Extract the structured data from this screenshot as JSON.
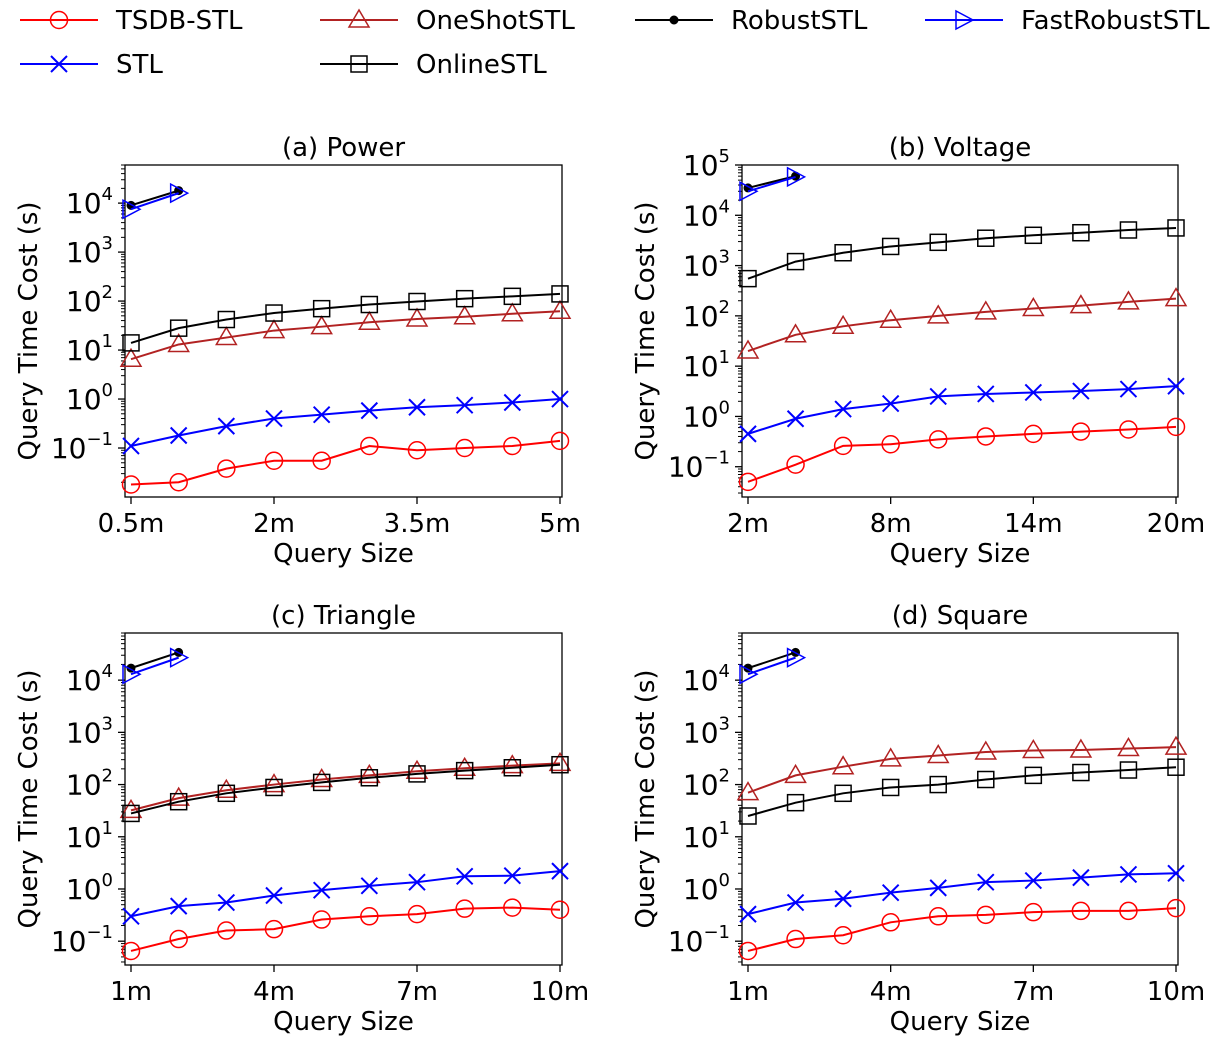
{
  "legend": [
    {
      "name": "TSDB-STL",
      "color": "#ff0000",
      "marker": "circle"
    },
    {
      "name": "OneShotSTL",
      "color": "#b22222",
      "marker": "triangle"
    },
    {
      "name": "RobustSTL",
      "color": "#000000",
      "marker": "dot"
    },
    {
      "name": "FastRobustSTL",
      "color": "#0000ff",
      "marker": "tri-right"
    },
    {
      "name": "STL",
      "color": "#0000ff",
      "marker": "x"
    },
    {
      "name": "OnlineSTL",
      "color": "#000000",
      "marker": "square"
    }
  ],
  "chart_data": [
    {
      "type": "line",
      "title": "(a) Power",
      "xlabel": "Query Size",
      "ylabel": "Query Time Cost (s)",
      "yscale": "log",
      "xlim": [
        0.5,
        5
      ],
      "ylim": [
        0.01,
        60000
      ],
      "x_ticks": [
        {
          "v": 0.5,
          "label": "0.5m"
        },
        {
          "v": 2,
          "label": "2m"
        },
        {
          "v": 3.5,
          "label": "3.5m"
        },
        {
          "v": 5,
          "label": "5m"
        }
      ],
      "y_ticks": [
        {
          "v": 0.1,
          "base": "10",
          "exp": "−1"
        },
        {
          "v": 1,
          "base": "10",
          "exp": "0"
        },
        {
          "v": 10,
          "base": "10",
          "exp": "1"
        },
        {
          "v": 100,
          "base": "10",
          "exp": "2"
        },
        {
          "v": 1000,
          "base": "10",
          "exp": "3"
        },
        {
          "v": 10000,
          "base": "10",
          "exp": "4"
        }
      ],
      "series": [
        {
          "name": "TSDB-STL",
          "x": [
            0.5,
            1,
            1.5,
            2,
            2.5,
            3,
            3.5,
            4,
            4.5,
            5
          ],
          "y": [
            0.018,
            0.02,
            0.038,
            0.055,
            0.055,
            0.11,
            0.09,
            0.1,
            0.11,
            0.14
          ]
        },
        {
          "name": "STL",
          "x": [
            0.5,
            1,
            1.5,
            2,
            2.5,
            3,
            3.5,
            4,
            4.5,
            5
          ],
          "y": [
            0.11,
            0.18,
            0.28,
            0.4,
            0.48,
            0.58,
            0.68,
            0.75,
            0.85,
            1.0
          ]
        },
        {
          "name": "OneShotSTL",
          "x": [
            0.5,
            1,
            1.5,
            2,
            2.5,
            3,
            3.5,
            4,
            4.5,
            5
          ],
          "y": [
            6.5,
            13,
            18,
            25,
            30,
            37,
            43,
            48,
            55,
            62
          ]
        },
        {
          "name": "OnlineSTL",
          "x": [
            0.5,
            1,
            1.5,
            2,
            2.5,
            3,
            3.5,
            4,
            4.5,
            5
          ],
          "y": [
            14,
            28,
            42,
            57,
            70,
            85,
            98,
            112,
            125,
            140
          ]
        },
        {
          "name": "RobustSTL",
          "x": [
            0.5,
            1
          ],
          "y": [
            9000,
            18000
          ]
        },
        {
          "name": "FastRobustSTL",
          "x": [
            0.5,
            1
          ],
          "y": [
            7500,
            16000
          ]
        }
      ]
    },
    {
      "type": "line",
      "title": "(b) Voltage",
      "xlabel": "Query Size",
      "ylabel": "Query Time Cost (s)",
      "yscale": "log",
      "xlim": [
        2,
        20
      ],
      "ylim": [
        0.025,
        100000
      ],
      "x_ticks": [
        {
          "v": 2,
          "label": "2m"
        },
        {
          "v": 8,
          "label": "8m"
        },
        {
          "v": 14,
          "label": "14m"
        },
        {
          "v": 20,
          "label": "20m"
        }
      ],
      "y_ticks": [
        {
          "v": 0.1,
          "base": "10",
          "exp": "−1"
        },
        {
          "v": 1,
          "base": "10",
          "exp": "0"
        },
        {
          "v": 10,
          "base": "10",
          "exp": "1"
        },
        {
          "v": 100,
          "base": "10",
          "exp": "2"
        },
        {
          "v": 1000,
          "base": "10",
          "exp": "3"
        },
        {
          "v": 10000,
          "base": "10",
          "exp": "4"
        },
        {
          "v": 100000,
          "base": "10",
          "exp": "5"
        }
      ],
      "series": [
        {
          "name": "TSDB-STL",
          "x": [
            2,
            4,
            6,
            8,
            10,
            12,
            14,
            16,
            18,
            20
          ],
          "y": [
            0.05,
            0.11,
            0.26,
            0.28,
            0.35,
            0.4,
            0.45,
            0.5,
            0.55,
            0.62
          ]
        },
        {
          "name": "STL",
          "x": [
            2,
            4,
            6,
            8,
            10,
            12,
            14,
            16,
            18,
            20
          ],
          "y": [
            0.45,
            0.9,
            1.4,
            1.8,
            2.5,
            2.8,
            3.0,
            3.2,
            3.5,
            4.0
          ]
        },
        {
          "name": "OneShotSTL",
          "x": [
            2,
            4,
            6,
            8,
            10,
            12,
            14,
            16,
            18,
            20
          ],
          "y": [
            20,
            42,
            62,
            82,
            100,
            120,
            140,
            160,
            190,
            220
          ]
        },
        {
          "name": "OnlineSTL",
          "x": [
            2,
            4,
            6,
            8,
            10,
            12,
            14,
            16,
            18,
            20
          ],
          "y": [
            550,
            1200,
            1800,
            2400,
            2900,
            3500,
            4000,
            4500,
            5100,
            5600
          ]
        },
        {
          "name": "RobustSTL",
          "x": [
            2,
            4
          ],
          "y": [
            35000,
            60000
          ]
        },
        {
          "name": "FastRobustSTL",
          "x": [
            2,
            4
          ],
          "y": [
            30000,
            58000
          ]
        }
      ]
    },
    {
      "type": "line",
      "title": "(c) Triangle",
      "xlabel": "Query Size",
      "ylabel": "Query Time Cost (s)",
      "yscale": "log",
      "xlim": [
        1,
        10
      ],
      "ylim": [
        0.035,
        80000
      ],
      "x_ticks": [
        {
          "v": 1,
          "label": "1m"
        },
        {
          "v": 4,
          "label": "4m"
        },
        {
          "v": 7,
          "label": "7m"
        },
        {
          "v": 10,
          "label": "10m"
        }
      ],
      "y_ticks": [
        {
          "v": 0.1,
          "base": "10",
          "exp": "−1"
        },
        {
          "v": 1,
          "base": "10",
          "exp": "0"
        },
        {
          "v": 10,
          "base": "10",
          "exp": "1"
        },
        {
          "v": 100,
          "base": "10",
          "exp": "2"
        },
        {
          "v": 1000,
          "base": "10",
          "exp": "3"
        },
        {
          "v": 10000,
          "base": "10",
          "exp": "4"
        }
      ],
      "series": [
        {
          "name": "TSDB-STL",
          "x": [
            1,
            2,
            3,
            4,
            5,
            6,
            7,
            8,
            9,
            10
          ],
          "y": [
            0.065,
            0.11,
            0.16,
            0.17,
            0.26,
            0.3,
            0.33,
            0.42,
            0.44,
            0.4
          ]
        },
        {
          "name": "STL",
          "x": [
            1,
            2,
            3,
            4,
            5,
            6,
            7,
            8,
            9,
            10
          ],
          "y": [
            0.3,
            0.47,
            0.55,
            0.75,
            0.95,
            1.15,
            1.35,
            1.75,
            1.8,
            2.2
          ]
        },
        {
          "name": "OneShotSTL",
          "x": [
            1,
            2,
            3,
            4,
            5,
            6,
            7,
            8,
            9,
            10
          ],
          "y": [
            32,
            55,
            78,
            100,
            125,
            150,
            180,
            205,
            230,
            255
          ]
        },
        {
          "name": "OnlineSTL",
          "x": [
            1,
            2,
            3,
            4,
            5,
            6,
            7,
            8,
            9,
            10
          ],
          "y": [
            28,
            47,
            68,
            88,
            110,
            135,
            160,
            185,
            210,
            240
          ]
        },
        {
          "name": "RobustSTL",
          "x": [
            1,
            2
          ],
          "y": [
            17000,
            34000
          ]
        },
        {
          "name": "FastRobustSTL",
          "x": [
            1,
            2
          ],
          "y": [
            13000,
            27000
          ]
        }
      ]
    },
    {
      "type": "line",
      "title": "(d) Square",
      "xlabel": "Query Size",
      "ylabel": "Query Time Cost (s)",
      "yscale": "log",
      "xlim": [
        1,
        10
      ],
      "ylim": [
        0.035,
        80000
      ],
      "x_ticks": [
        {
          "v": 1,
          "label": "1m"
        },
        {
          "v": 4,
          "label": "4m"
        },
        {
          "v": 7,
          "label": "7m"
        },
        {
          "v": 10,
          "label": "10m"
        }
      ],
      "y_ticks": [
        {
          "v": 0.1,
          "base": "10",
          "exp": "−1"
        },
        {
          "v": 1,
          "base": "10",
          "exp": "0"
        },
        {
          "v": 10,
          "base": "10",
          "exp": "1"
        },
        {
          "v": 100,
          "base": "10",
          "exp": "2"
        },
        {
          "v": 1000,
          "base": "10",
          "exp": "3"
        },
        {
          "v": 10000,
          "base": "10",
          "exp": "4"
        }
      ],
      "series": [
        {
          "name": "TSDB-STL",
          "x": [
            1,
            2,
            3,
            4,
            5,
            6,
            7,
            8,
            9,
            10
          ],
          "y": [
            0.065,
            0.11,
            0.13,
            0.23,
            0.3,
            0.32,
            0.36,
            0.38,
            0.38,
            0.43
          ]
        },
        {
          "name": "STL",
          "x": [
            1,
            2,
            3,
            4,
            5,
            6,
            7,
            8,
            9,
            10
          ],
          "y": [
            0.33,
            0.55,
            0.65,
            0.85,
            1.05,
            1.35,
            1.45,
            1.65,
            1.9,
            2.0
          ]
        },
        {
          "name": "OneShotSTL",
          "x": [
            1,
            2,
            3,
            4,
            5,
            6,
            7,
            8,
            9,
            10
          ],
          "y": [
            70,
            150,
            220,
            310,
            360,
            420,
            450,
            460,
            490,
            520
          ]
        },
        {
          "name": "OnlineSTL",
          "x": [
            1,
            2,
            3,
            4,
            5,
            6,
            7,
            8,
            9,
            10
          ],
          "y": [
            25,
            45,
            68,
            88,
            100,
            125,
            150,
            170,
            190,
            215
          ]
        },
        {
          "name": "RobustSTL",
          "x": [
            1,
            2
          ],
          "y": [
            17000,
            34000
          ]
        },
        {
          "name": "FastRobustSTL",
          "x": [
            1,
            2
          ],
          "y": [
            13000,
            27000
          ]
        }
      ]
    }
  ]
}
